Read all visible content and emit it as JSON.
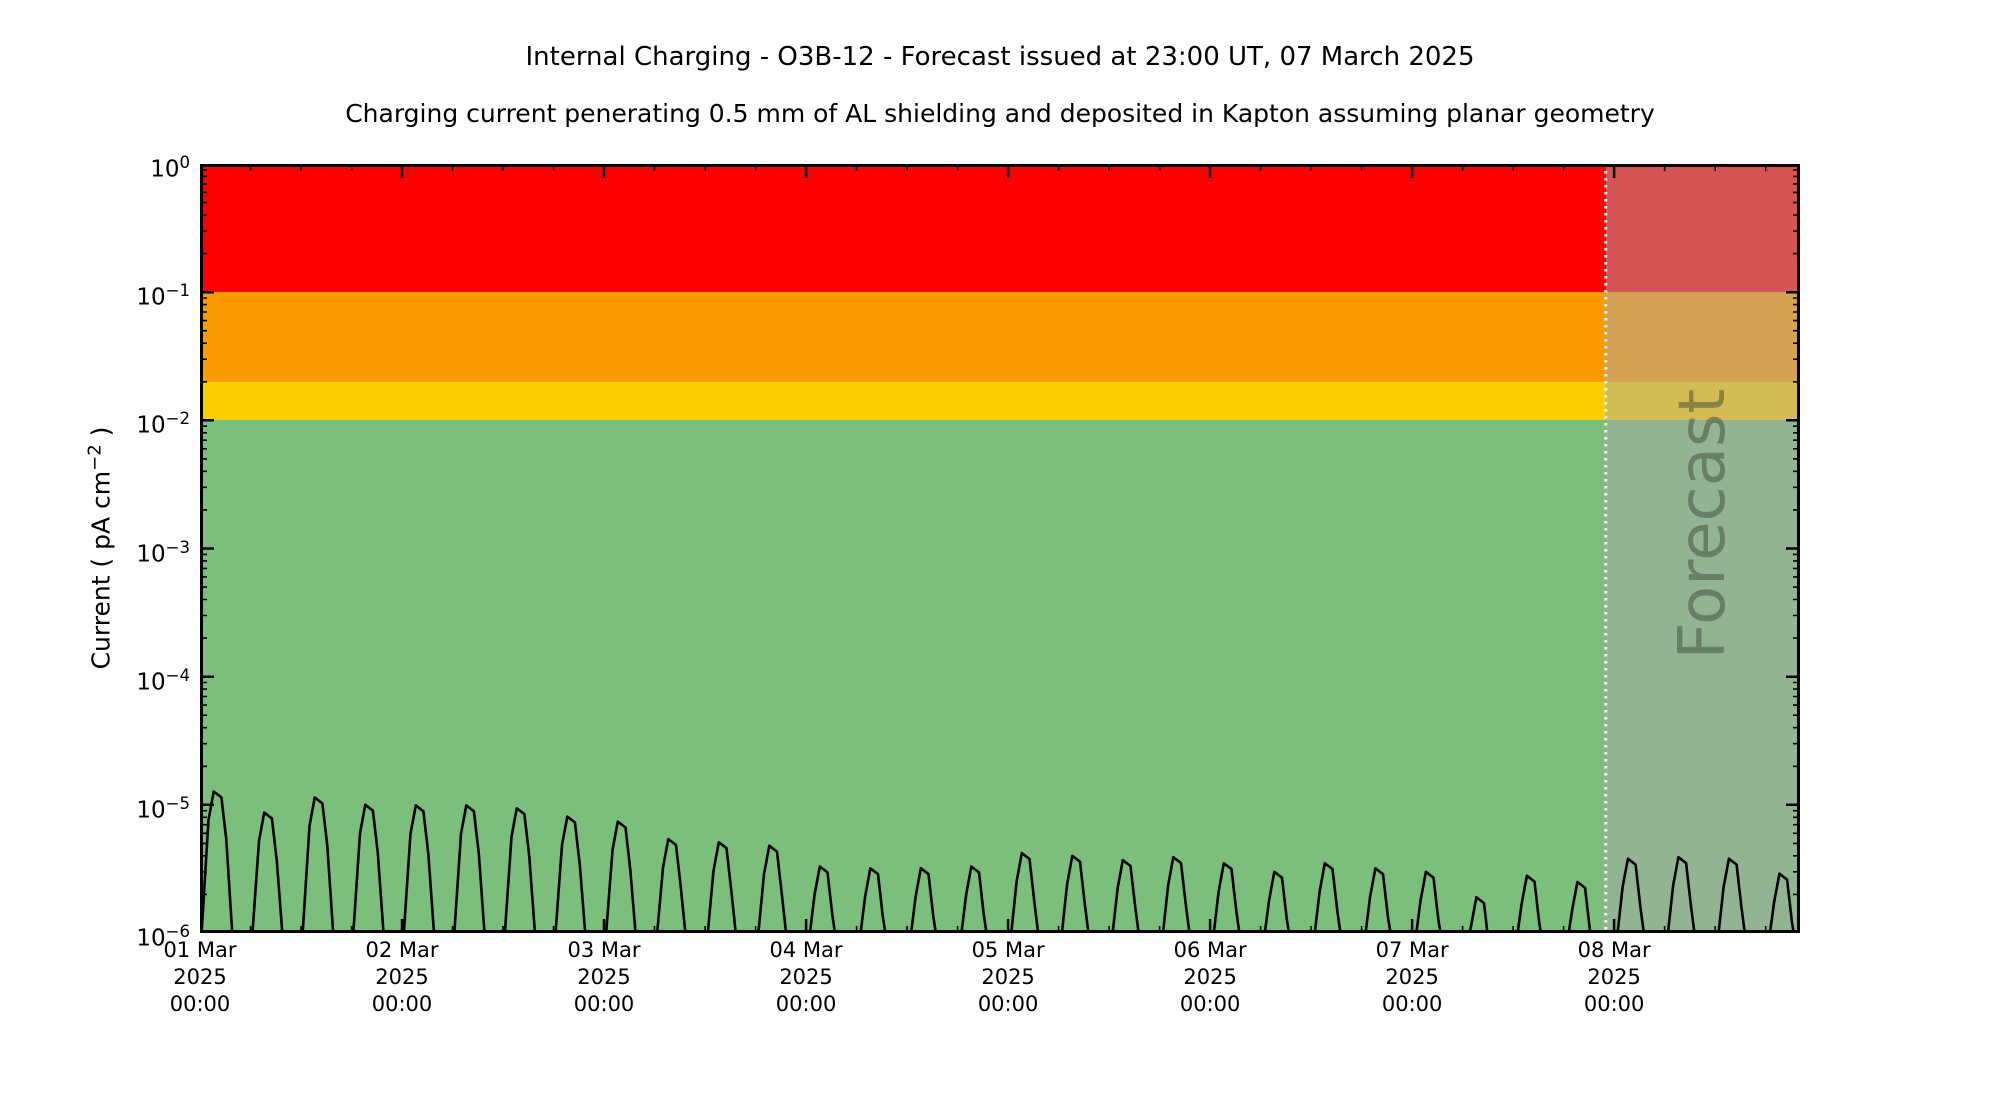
{
  "header": {
    "title": "Internal Charging - O3B-12 - Forecast issued at 23:00 UT, 07 March 2025",
    "subtitle": "Charging current penerating 0.5 mm of AL shielding and deposited in Kapton assuming planar geometry"
  },
  "y_axis": {
    "label_pre": "Current ( pA cm",
    "label_sup": "−2",
    "label_post": " )",
    "tick_base": "10",
    "tick_exponents": [
      "0",
      "−1",
      "−2",
      "−3",
      "−4",
      "−5",
      "−6"
    ]
  },
  "x_axis": {
    "tick_labels": [
      {
        "date": "01 Mar",
        "year": "2025",
        "time": "00:00"
      },
      {
        "date": "02 Mar",
        "year": "2025",
        "time": "00:00"
      },
      {
        "date": "03 Mar",
        "year": "2025",
        "time": "00:00"
      },
      {
        "date": "04 Mar",
        "year": "2025",
        "time": "00:00"
      },
      {
        "date": "05 Mar",
        "year": "2025",
        "time": "00:00"
      },
      {
        "date": "06 Mar",
        "year": "2025",
        "time": "00:00"
      },
      {
        "date": "07 Mar",
        "year": "2025",
        "time": "00:00"
      },
      {
        "date": "08 Mar",
        "year": "2025",
        "time": "00:00"
      }
    ]
  },
  "forecast": {
    "label": "Forecast",
    "start_days": 6.958,
    "overlay_color": "rgba(170,170,170,0.5)",
    "divider_color": "#ffffff"
  },
  "chart_data": {
    "type": "line",
    "title": "Internal Charging - O3B-12 - Forecast issued at 23:00 UT, 07 March 2025",
    "subtitle": "Charging current penerating 0.5 mm of AL shielding and deposited in Kapton assuming planar geometry",
    "ylabel": "Current ( pA cm^-2 )",
    "yscale": "log",
    "ylim": [
      1e-06,
      1
    ],
    "xlim_days": [
      0,
      7.92
    ],
    "x_start_label": "01 Mar 2025 00:00",
    "x_major_tick_days": [
      0,
      1,
      2,
      3,
      4,
      5,
      6,
      7
    ],
    "x_minor_tick_hours": 6,
    "grid": false,
    "threshold_bands": [
      {
        "level": "red",
        "range": [
          0.1,
          1.0
        ],
        "color": "#ff0000"
      },
      {
        "level": "orange",
        "range": [
          0.02,
          0.1
        ],
        "color": "#fd9a00"
      },
      {
        "level": "yellow",
        "range": [
          0.01,
          0.02
        ],
        "color": "#ffcf00"
      },
      {
        "level": "green",
        "range": [
          1e-06,
          0.01
        ],
        "color": "#7cbe7c"
      }
    ],
    "forecast_start_days": 6.958,
    "series": [
      {
        "name": "internal charging current",
        "color": "#000000",
        "baseline": 5e-07,
        "first_peak_day": 0.084,
        "peak_interval_days": 0.25,
        "peak_values_pA_cm2": [
          1.27e-05,
          8.7e-06,
          1.14e-05,
          1e-05,
          9.9e-06,
          9.9e-06,
          9.4e-06,
          8.1e-06,
          7.4e-06,
          5.4e-06,
          5.1e-06,
          4.8e-06,
          3.3e-06,
          3.2e-06,
          3.2e-06,
          3.3e-06,
          4.2e-06,
          4e-06,
          3.7e-06,
          3.9e-06,
          3.5e-06,
          3e-06,
          3.5e-06,
          3.2e-06,
          3e-06,
          1.9e-06,
          2.8e-06,
          2.5e-06,
          3.8e-06,
          3.9e-06,
          3.8e-06,
          2.9e-06
        ]
      }
    ]
  }
}
